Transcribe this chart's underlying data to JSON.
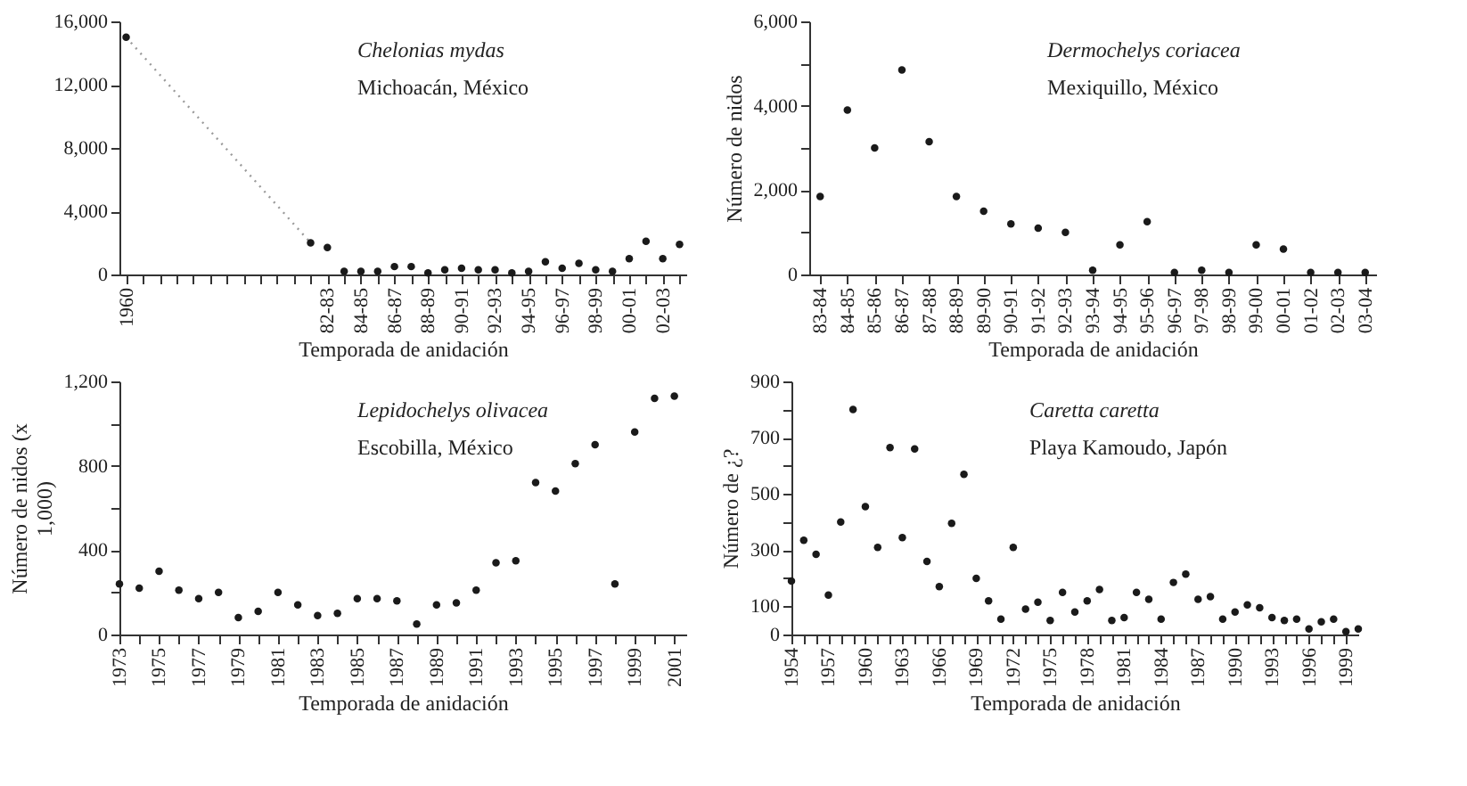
{
  "chart_data": [
    {
      "type": "scatter",
      "xlabel": "Temporada de anidación",
      "annotations": [
        "Chelonias mydas",
        "Michoacán, México"
      ],
      "categories": [
        "1960",
        null,
        null,
        null,
        null,
        null,
        null,
        null,
        null,
        null,
        null,
        null,
        "82-83",
        null,
        "84-85",
        null,
        "86-87",
        null,
        "88-89",
        null,
        "90-91",
        null,
        "92-93",
        null,
        "94-95",
        null,
        "96-97",
        null,
        "98-99",
        null,
        "00-01",
        null,
        "02-03",
        null
      ],
      "series": [
        {
          "type": "line",
          "color": "#9a9a9a",
          "line_style": "dotted",
          "marker": "none",
          "values": [
            15000,
            null,
            null,
            null,
            null,
            null,
            null,
            null,
            null,
            null,
            null,
            2000,
            null,
            null,
            null,
            null,
            null,
            null,
            null,
            null,
            null,
            null,
            null,
            null,
            null,
            null,
            null,
            null,
            null,
            null,
            null,
            null,
            null,
            null
          ]
        },
        {
          "color": "#1a1a1a",
          "values": [
            15000,
            null,
            null,
            null,
            null,
            null,
            null,
            null,
            null,
            null,
            null,
            2000,
            1700,
            200,
            200,
            200,
            500,
            500,
            100,
            300,
            400,
            300,
            300,
            100,
            200,
            800,
            400,
            700,
            300,
            200,
            1000,
            2100,
            1000,
            1900
          ]
        }
      ],
      "ylim": [
        0,
        16000
      ],
      "yticks": [
        0,
        {
          "value": 4000,
          "label": "4,000"
        },
        {
          "value": 8000,
          "label": "8,000"
        },
        {
          "value": 12000,
          "label": "12,000"
        },
        {
          "value": 16000,
          "label": "16,000"
        }
      ],
      "marker": "circle",
      "grid": false
    },
    {
      "type": "scatter",
      "xlabel": "Temporada de anidación",
      "ylabel": "Número de nidos",
      "annotations": [
        "Dermochelys coriacea",
        "Mexiquillo, México"
      ],
      "categories": [
        "83-84",
        "84-85",
        "85-86",
        "86-87",
        "87-88",
        "88-89",
        "89-90",
        "90-91",
        "91-92",
        "92-93",
        "93-94",
        "94-95",
        "95-96",
        "96-97",
        "97-98",
        "98-99",
        "99-00",
        "00-01",
        "01-02",
        "02-03",
        "03-04"
      ],
      "series": [
        {
          "color": "#1a1a1a",
          "values": [
            1850,
            3900,
            3000,
            4850,
            3150,
            1850,
            1500,
            1200,
            1100,
            1000,
            100,
            700,
            1250,
            50,
            100,
            50,
            700,
            600,
            50,
            50,
            50
          ]
        }
      ],
      "ylim": [
        0,
        6000
      ],
      "yticks": [
        0,
        {
          "value": 1000,
          "label": null
        },
        {
          "value": 2000,
          "label": "2,000"
        },
        {
          "value": 3000,
          "label": null
        },
        {
          "value": 4000,
          "label": "4,000"
        },
        {
          "value": 5000,
          "label": null
        },
        {
          "value": 6000,
          "label": "6,000"
        }
      ],
      "marker": "circle",
      "grid": false
    },
    {
      "type": "scatter",
      "xlabel": "Temporada de anidación",
      "ylabel": "Número de nidos (x 1,000)",
      "annotations": [
        "Lepidochelys olivacea",
        "Escobilla, México"
      ],
      "x": [
        1973,
        1974,
        1975,
        1976,
        1977,
        1978,
        1979,
        1980,
        1981,
        1982,
        1983,
        1984,
        1985,
        1986,
        1987,
        1988,
        1989,
        1990,
        1991,
        1992,
        1993,
        1994,
        1995,
        1996,
        1997,
        1998,
        1999,
        2000,
        2001
      ],
      "series": [
        {
          "color": "#1a1a1a",
          "values": [
            240,
            220,
            300,
            210,
            170,
            200,
            80,
            110,
            200,
            140,
            90,
            100,
            170,
            170,
            160,
            50,
            140,
            150,
            210,
            340,
            350,
            720,
            680,
            810,
            900,
            240,
            960,
            1120,
            1130
          ]
        }
      ],
      "xlim": [
        1973,
        2001.6
      ],
      "xticks": [
        1973,
        {
          "value": 1974,
          "label": null
        },
        1975,
        {
          "value": 1976,
          "label": null
        },
        1977,
        {
          "value": 1978,
          "label": null
        },
        1979,
        {
          "value": 1980,
          "label": null
        },
        1981,
        {
          "value": 1982,
          "label": null
        },
        1983,
        {
          "value": 1984,
          "label": null
        },
        1985,
        {
          "value": 1986,
          "label": null
        },
        1987,
        {
          "value": 1988,
          "label": null
        },
        1989,
        {
          "value": 1990,
          "label": null
        },
        1991,
        {
          "value": 1992,
          "label": null
        },
        1993,
        {
          "value": 1994,
          "label": null
        },
        1995,
        {
          "value": 1996,
          "label": null
        },
        1997,
        {
          "value": 1998,
          "label": null
        },
        1999,
        {
          "value": 2000,
          "label": null
        },
        2001
      ],
      "ylim": [
        0,
        1200
      ],
      "yticks": [
        0,
        {
          "value": 200,
          "label": null
        },
        400,
        {
          "value": 600,
          "label": null
        },
        800,
        {
          "value": 1000,
          "label": null
        },
        {
          "value": 1200,
          "label": "1,200"
        }
      ],
      "marker": "circle",
      "grid": false
    },
    {
      "type": "scatter",
      "xlabel": "Temporada de anidación",
      "ylabel": "Número de ¿?",
      "annotations": [
        "Caretta caretta",
        "Playa Kamoudo, Japón"
      ],
      "x": [
        1954,
        1955,
        1956,
        1957,
        1958,
        1959,
        1960,
        1961,
        1962,
        1963,
        1964,
        1965,
        1966,
        1967,
        1968,
        1969,
        1970,
        1971,
        1972,
        1973,
        1974,
        1975,
        1976,
        1977,
        1978,
        1979,
        1980,
        1981,
        1982,
        1983,
        1984,
        1985,
        1986,
        1987,
        1988,
        1989,
        1990,
        1991,
        1992,
        1993,
        1994,
        1995,
        1996,
        1997,
        1998,
        1999,
        2000
      ],
      "series": [
        {
          "color": "#1a1a1a",
          "values": [
            190,
            335,
            285,
            140,
            400,
            800,
            455,
            310,
            665,
            345,
            660,
            260,
            170,
            395,
            570,
            200,
            120,
            55,
            310,
            90,
            115,
            50,
            150,
            80,
            120,
            160,
            50,
            60,
            150,
            125,
            55,
            185,
            215,
            125,
            135,
            55,
            80,
            105,
            95,
            60,
            50,
            55,
            20,
            45,
            55,
            10,
            20
          ]
        }
      ],
      "xlim": [
        1954,
        2000
      ],
      "xticks": [
        1954,
        {
          "value": 1955,
          "label": null
        },
        {
          "value": 1956,
          "label": null
        },
        1957,
        {
          "value": 1958,
          "label": null
        },
        {
          "value": 1959,
          "label": null
        },
        1960,
        {
          "value": 1961,
          "label": null
        },
        {
          "value": 1962,
          "label": null
        },
        1963,
        {
          "value": 1964,
          "label": null
        },
        {
          "value": 1965,
          "label": null
        },
        1966,
        {
          "value": 1967,
          "label": null
        },
        {
          "value": 1968,
          "label": null
        },
        1969,
        {
          "value": 1970,
          "label": null
        },
        {
          "value": 1971,
          "label": null
        },
        1972,
        {
          "value": 1973,
          "label": null
        },
        {
          "value": 1974,
          "label": null
        },
        1975,
        {
          "value": 1976,
          "label": null
        },
        {
          "value": 1977,
          "label": null
        },
        1978,
        {
          "value": 1979,
          "label": null
        },
        {
          "value": 1980,
          "label": null
        },
        1981,
        {
          "value": 1982,
          "label": null
        },
        {
          "value": 1983,
          "label": null
        },
        1984,
        {
          "value": 1985,
          "label": null
        },
        {
          "value": 1986,
          "label": null
        },
        1987,
        {
          "value": 1988,
          "label": null
        },
        {
          "value": 1989,
          "label": null
        },
        1990,
        {
          "value": 1991,
          "label": null
        },
        {
          "value": 1992,
          "label": null
        },
        1993,
        {
          "value": 1994,
          "label": null
        },
        {
          "value": 1995,
          "label": null
        },
        1996,
        {
          "value": 1997,
          "label": null
        },
        {
          "value": 1998,
          "label": null
        },
        1999
      ],
      "ylim": [
        0,
        900
      ],
      "yticks": [
        0,
        100,
        {
          "value": 200,
          "label": null
        },
        300,
        {
          "value": 400,
          "label": null
        },
        500,
        {
          "value": 600,
          "label": null
        },
        700,
        {
          "value": 800,
          "label": null
        },
        900
      ],
      "marker": "circle",
      "grid": false
    }
  ]
}
